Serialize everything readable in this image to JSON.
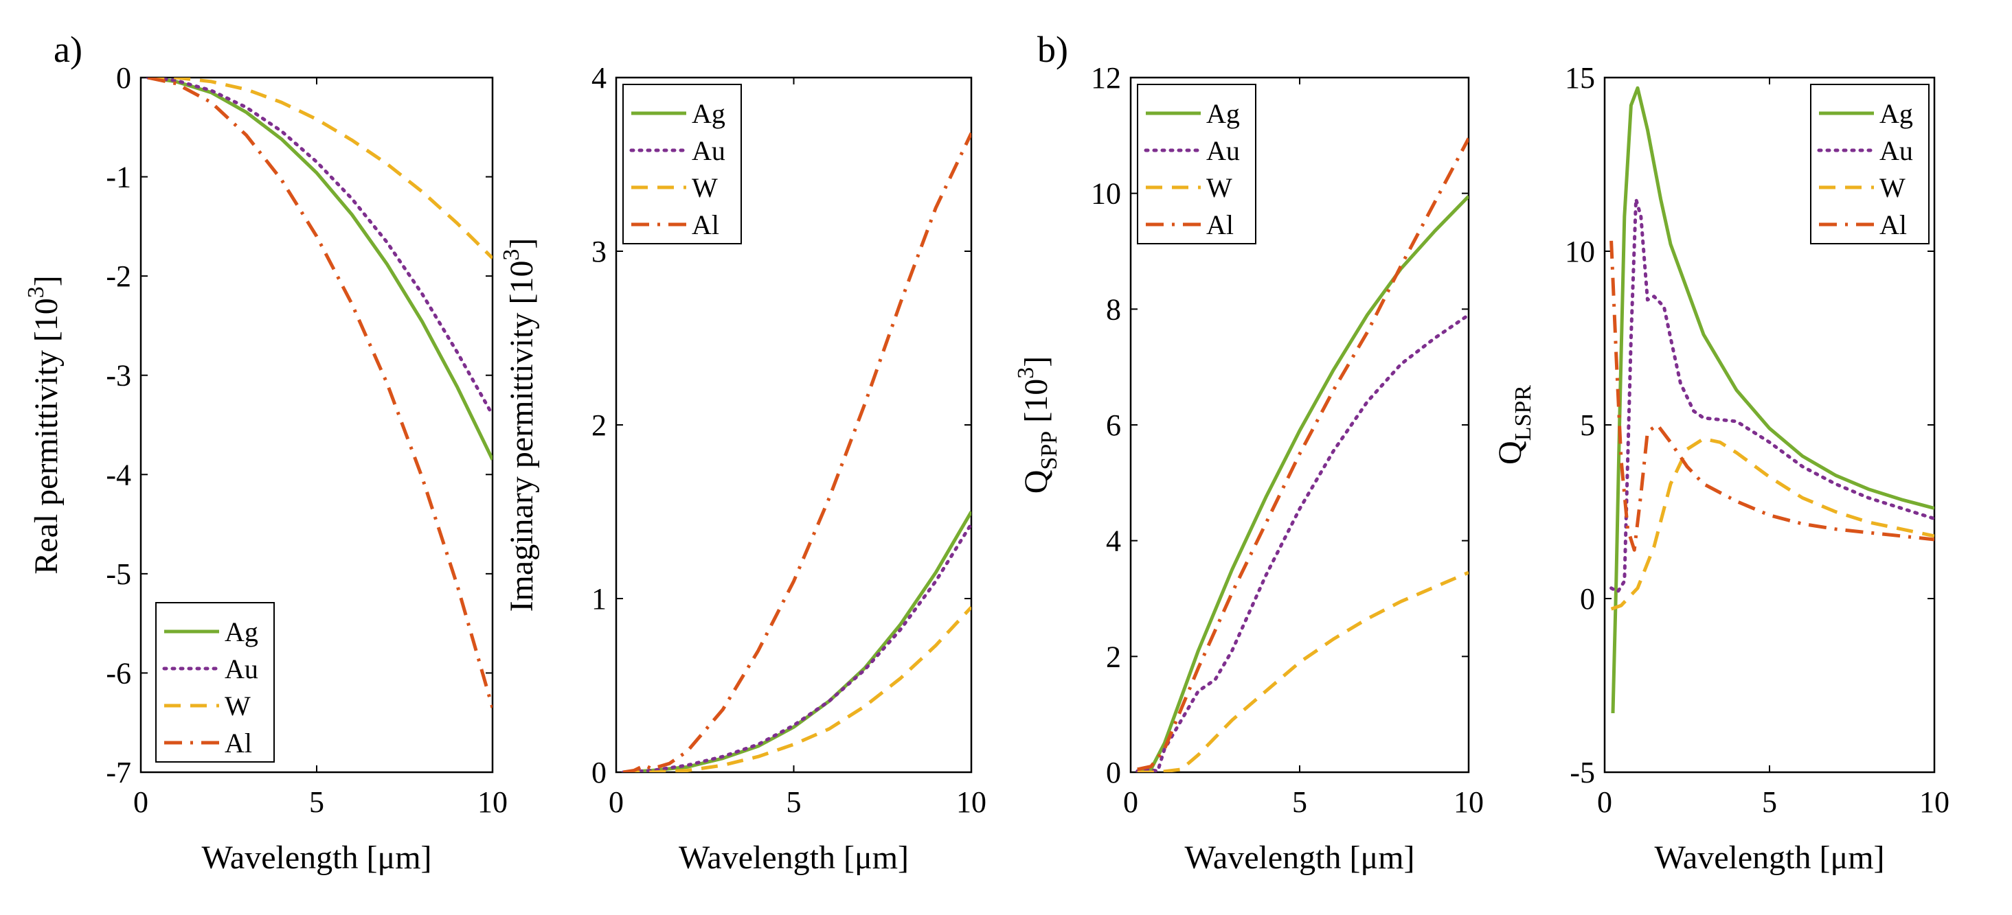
{
  "panel_labels": [
    "a)",
    "b)"
  ],
  "colors": {
    "Ag": "#77AC30",
    "Au": "#7E2F8E",
    "W": "#EDB120",
    "Al": "#D95319"
  },
  "chart_data": [
    {
      "type": "line",
      "xlabel": "Wavelength [μm]",
      "ylabel": "Real permittivity [10³]",
      "ylabel_main": "Real permittivity [10",
      "ylabel_sup": "3",
      "ylabel_tail": "]",
      "xlim": [
        0,
        10
      ],
      "ylim": [
        -7,
        0
      ],
      "xticks": [
        0,
        5,
        10
      ],
      "yticks": [
        0,
        -1,
        -2,
        -3,
        -4,
        -5,
        -6,
        -7
      ],
      "legend_position": "bottom-left",
      "series": [
        {
          "name": "Ag",
          "style": "solid",
          "x": [
            0.2,
            1,
            2,
            3,
            4,
            5,
            6,
            7,
            8,
            9,
            10
          ],
          "y": [
            0,
            -0.04,
            -0.15,
            -0.35,
            -0.62,
            -0.96,
            -1.38,
            -1.88,
            -2.46,
            -3.12,
            -3.85
          ]
        },
        {
          "name": "Au",
          "style": "dotted",
          "x": [
            0.2,
            1,
            2,
            3,
            4,
            5,
            6,
            7,
            8,
            9,
            10
          ],
          "y": [
            0,
            -0.03,
            -0.13,
            -0.3,
            -0.54,
            -0.85,
            -1.22,
            -1.66,
            -2.18,
            -2.77,
            -3.4
          ]
        },
        {
          "name": "W",
          "style": "dashed",
          "x": [
            0.2,
            1,
            2,
            3,
            4,
            5,
            6,
            7,
            8,
            9,
            10
          ],
          "y": [
            0,
            0,
            -0.04,
            -0.12,
            -0.25,
            -0.42,
            -0.63,
            -0.87,
            -1.15,
            -1.47,
            -1.82
          ]
        },
        {
          "name": "Al",
          "style": "dashdot",
          "x": [
            0.2,
            1,
            2,
            3,
            4,
            5,
            6,
            7,
            8,
            9,
            10
          ],
          "y": [
            0,
            -0.06,
            -0.25,
            -0.58,
            -1.03,
            -1.6,
            -2.28,
            -3.08,
            -4.03,
            -5.12,
            -6.35
          ]
        }
      ]
    },
    {
      "type": "line",
      "xlabel": "Wavelength [μm]",
      "ylabel": "Imaginary permittivity [10³]",
      "ylabel_main": "Imaginary permittivity [10",
      "ylabel_sup": "3",
      "ylabel_tail": "]",
      "xlim": [
        0,
        10
      ],
      "ylim": [
        0,
        4
      ],
      "xticks": [
        0,
        5,
        10
      ],
      "yticks": [
        0,
        1,
        2,
        3,
        4
      ],
      "legend_position": "top-left",
      "series": [
        {
          "name": "Ag",
          "style": "solid",
          "x": [
            0.2,
            1,
            2,
            3,
            4,
            5,
            6,
            7,
            8,
            9,
            10
          ],
          "y": [
            0,
            0.01,
            0.03,
            0.08,
            0.15,
            0.26,
            0.41,
            0.6,
            0.85,
            1.15,
            1.5
          ]
        },
        {
          "name": "Au",
          "style": "dotted",
          "x": [
            0.2,
            1,
            2,
            3,
            4,
            5,
            6,
            7,
            8,
            9,
            10
          ],
          "y": [
            0,
            0.01,
            0.04,
            0.09,
            0.16,
            0.27,
            0.41,
            0.59,
            0.82,
            1.1,
            1.43
          ]
        },
        {
          "name": "W",
          "style": "dashed",
          "x": [
            0.2,
            1,
            2,
            3,
            4,
            5,
            6,
            7,
            8,
            9,
            10
          ],
          "y": [
            0,
            0,
            0.01,
            0.04,
            0.09,
            0.16,
            0.25,
            0.38,
            0.54,
            0.73,
            0.95
          ]
        },
        {
          "name": "Al",
          "style": "dashdot",
          "x": [
            0.2,
            0.5,
            0.8,
            1.0,
            1.5,
            2,
            3,
            4,
            5,
            6,
            7,
            8,
            9,
            10
          ],
          "y": [
            0,
            0.01,
            0.04,
            0.02,
            0.05,
            0.12,
            0.36,
            0.7,
            1.1,
            1.58,
            2.12,
            2.7,
            3.25,
            3.68
          ]
        }
      ]
    },
    {
      "type": "line",
      "xlabel": "Wavelength [μm]",
      "ylabel": "Q_SPP [10³]",
      "ylabel_main": "Q",
      "ylabel_sub": "SPP",
      "ylabel_tail": " [10",
      "ylabel_sup": "3",
      "ylabel_end": "]",
      "xlim": [
        0,
        10
      ],
      "ylim": [
        0,
        12
      ],
      "xticks": [
        0,
        5,
        10
      ],
      "yticks": [
        0,
        2,
        4,
        6,
        8,
        10,
        12
      ],
      "legend_position": "top-left",
      "series": [
        {
          "name": "Ag",
          "style": "solid",
          "x": [
            0.2,
            0.6,
            1,
            1.5,
            2,
            3,
            4,
            5,
            6,
            7,
            8,
            9,
            10
          ],
          "y": [
            0.05,
            0.05,
            0.5,
            1.3,
            2.1,
            3.5,
            4.75,
            5.9,
            6.95,
            7.9,
            8.7,
            9.35,
            9.95
          ]
        },
        {
          "name": "Au",
          "style": "dotted",
          "x": [
            0.2,
            0.5,
            0.8,
            1,
            1.5,
            2,
            2.5,
            3,
            4,
            5,
            6,
            7,
            8,
            9,
            10
          ],
          "y": [
            0.02,
            0.05,
            0.02,
            0.4,
            0.9,
            1.4,
            1.6,
            2.1,
            3.4,
            4.55,
            5.55,
            6.4,
            7.05,
            7.5,
            7.9
          ]
        },
        {
          "name": "W",
          "style": "dashed",
          "x": [
            0.2,
            0.8,
            1.5,
            2,
            2.5,
            3,
            4,
            5,
            6,
            7,
            8,
            9,
            10
          ],
          "y": [
            0,
            0,
            0.05,
            0.3,
            0.6,
            0.9,
            1.4,
            1.9,
            2.3,
            2.65,
            2.95,
            3.2,
            3.45
          ]
        },
        {
          "name": "Al",
          "style": "dashdot",
          "x": [
            0.2,
            0.6,
            1,
            1.5,
            2,
            3,
            4,
            5,
            6,
            7,
            8,
            9,
            10
          ],
          "y": [
            0.05,
            0.1,
            0.4,
            1.1,
            1.8,
            3.1,
            4.3,
            5.5,
            6.6,
            7.6,
            8.75,
            9.85,
            10.95
          ]
        }
      ]
    },
    {
      "type": "line",
      "xlabel": "Wavelength [μm]",
      "ylabel": "Q_LSPR",
      "ylabel_main": "Q",
      "ylabel_sub": "LSPR",
      "xlim": [
        0,
        10
      ],
      "ylim": [
        -5,
        15
      ],
      "xticks": [
        0,
        5,
        10
      ],
      "yticks": [
        -5,
        0,
        5,
        10,
        15
      ],
      "legend_position": "top-right",
      "series": [
        {
          "name": "Ag",
          "style": "solid",
          "x": [
            0.25,
            0.35,
            0.45,
            0.6,
            0.8,
            1.0,
            1.3,
            1.7,
            2,
            3,
            4,
            5,
            6,
            7,
            8,
            9,
            10
          ],
          "y": [
            -3.3,
            0.5,
            5,
            11,
            14.2,
            14.7,
            13.5,
            11.5,
            10.2,
            7.6,
            6,
            4.9,
            4.1,
            3.55,
            3.15,
            2.85,
            2.6
          ]
        },
        {
          "name": "Au",
          "style": "dotted",
          "x": [
            0.2,
            0.4,
            0.6,
            0.8,
            0.95,
            1.1,
            1.3,
            1.5,
            1.8,
            2,
            2.3,
            2.7,
            3,
            3.5,
            4,
            5,
            6,
            7,
            8,
            9,
            10
          ],
          "y": [
            0.3,
            0.2,
            0.5,
            7.5,
            11.5,
            11,
            8.6,
            8.7,
            8.4,
            7.5,
            6.2,
            5.4,
            5.2,
            5.15,
            5.1,
            4.5,
            3.8,
            3.3,
            2.9,
            2.6,
            2.3
          ]
        },
        {
          "name": "W",
          "style": "dashed",
          "x": [
            0.2,
            0.5,
            0.8,
            1,
            1.5,
            2,
            2.5,
            3,
            3.5,
            4,
            5,
            6,
            7,
            8,
            9,
            10
          ],
          "y": [
            -0.3,
            -0.2,
            0.1,
            0.3,
            1.5,
            3.3,
            4.3,
            4.6,
            4.5,
            4.2,
            3.5,
            2.9,
            2.5,
            2.2,
            2.0,
            1.8
          ]
        },
        {
          "name": "Al",
          "style": "dashdot",
          "x": [
            0.2,
            0.35,
            0.5,
            0.7,
            0.9,
            1.1,
            1.3,
            1.6,
            2,
            2.5,
            3,
            4,
            5,
            6,
            7,
            8,
            9,
            10
          ],
          "y": [
            10.3,
            7,
            4,
            2,
            1.4,
            3,
            4.8,
            5,
            4.5,
            3.8,
            3.3,
            2.8,
            2.4,
            2.15,
            2,
            1.9,
            1.8,
            1.7
          ]
        }
      ]
    }
  ]
}
